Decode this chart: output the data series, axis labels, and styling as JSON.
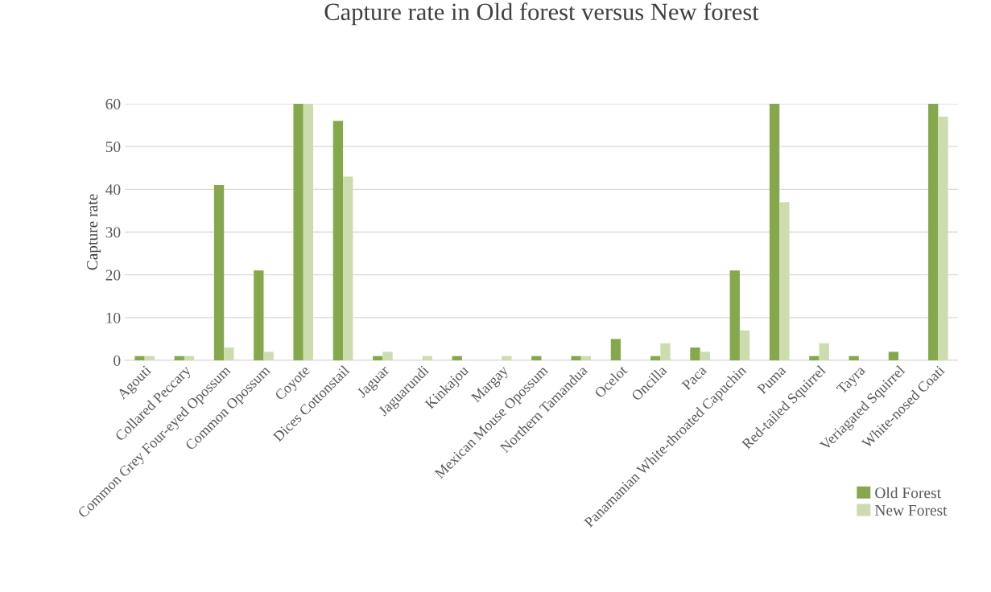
{
  "chart_data": {
    "type": "bar",
    "title": "Capture rate in Old forest versus New forest",
    "ylabel": "Capture rate",
    "categories": [
      "Agouti",
      "Collared Peccary",
      "Common Grey Four-eyed Opossum",
      "Common Opossum",
      "Coyote",
      "Dices Cottonstail",
      "Jaguar",
      "Jaguarundi",
      "Kinkajou",
      "Margay",
      "Mexican Mouse Opossum",
      "Northern Tamandua",
      "Ocelot",
      "Oncilla",
      "Paca",
      "Panamanian White-throated Capuchin",
      "Puma",
      "Red-tailed Squirrel",
      "Tayra",
      "Veriagated Squirrel",
      "White-nosed Coati"
    ],
    "series": [
      {
        "name": "Old Forest",
        "color": "#86a84c",
        "values": [
          1,
          1,
          41,
          21,
          60,
          56,
          1,
          0,
          1,
          0,
          1,
          1,
          5,
          1,
          3,
          21,
          60,
          1,
          1,
          2,
          60
        ]
      },
      {
        "name": "New Forest",
        "color": "#cddcae",
        "values": [
          1,
          1,
          3,
          2,
          60,
          43,
          2,
          1,
          0,
          1,
          0,
          1,
          0,
          4,
          2,
          7,
          37,
          4,
          0,
          0,
          57
        ]
      }
    ],
    "ylim": [
      0,
      60
    ],
    "yticks": [
      0,
      10,
      20,
      30,
      40,
      50,
      60
    ],
    "grid": "y",
    "legend": "bottom right"
  }
}
